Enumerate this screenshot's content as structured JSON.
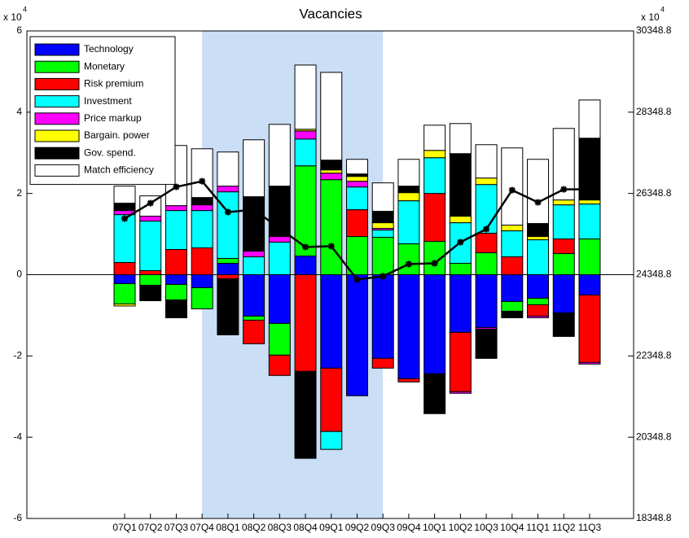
{
  "chart_data": {
    "type": "bar",
    "stacked": true,
    "title": "Vacancies",
    "y_multiplier": {
      "base": "x 10",
      "exponent": "4"
    },
    "y2_multiplier": {
      "base": "x 10",
      "exponent": "4"
    },
    "categories": [
      "07Q1",
      "07Q2",
      "07Q3",
      "07Q4",
      "08Q1",
      "08Q2",
      "08Q3",
      "08Q4",
      "09Q1",
      "09Q2",
      "09Q3",
      "09Q4",
      "10Q1",
      "10Q2",
      "10Q3",
      "10Q4",
      "11Q1",
      "11Q2",
      "11Q3"
    ],
    "series": [
      {
        "name": "Technology",
        "color": "#0000ff",
        "values": [
          -0.22,
          0,
          -0.24,
          -0.32,
          0.28,
          -1.02,
          -1.2,
          0.46,
          -2.3,
          -2.98,
          -2.06,
          -2.56,
          -2.44,
          -1.42,
          -1.3,
          -0.66,
          -0.58,
          -0.94,
          -0.5
        ]
      },
      {
        "name": "Monetary",
        "color": "#00ff00",
        "values": [
          -0.5,
          -0.26,
          -0.38,
          -0.52,
          0.12,
          -0.1,
          -0.78,
          2.22,
          2.34,
          0.94,
          0.92,
          0.76,
          0.82,
          0.28,
          0.54,
          -0.24,
          -0.16,
          0.52,
          0.88
        ]
      },
      {
        "name": "Risk premium",
        "color": "#ff0000",
        "values": [
          0.3,
          0.1,
          0.62,
          0.66,
          -0.1,
          -0.58,
          -0.5,
          -2.38,
          -1.56,
          0.66,
          -0.24,
          -0.08,
          1.18,
          -1.46,
          0.48,
          0.44,
          -0.28,
          0.36,
          -1.66
        ]
      },
      {
        "name": "Investment",
        "color": "#00ffff",
        "values": [
          1.18,
          1.22,
          0.96,
          0.92,
          1.64,
          0.44,
          0.8,
          0.66,
          -0.44,
          0.56,
          0.18,
          1.06,
          0.88,
          1.0,
          1.2,
          0.64,
          0.86,
          0.84,
          0.86
        ]
      },
      {
        "name": "Price markup",
        "color": "#ff00ff",
        "values": [
          0.1,
          0.12,
          0.12,
          0.14,
          0.14,
          0.14,
          0.14,
          0.2,
          0.16,
          0.14,
          0.04,
          0,
          0,
          -0.04,
          -0.04,
          0,
          -0.04,
          0,
          -0.04
        ]
      },
      {
        "name": "Bargain. power",
        "color": "#ffff00",
        "values": [
          -0.05,
          0,
          0,
          0,
          0,
          0,
          0,
          0.04,
          0.08,
          0.12,
          0.14,
          0.2,
          0.18,
          0.16,
          0.16,
          0.14,
          0.08,
          0.12,
          0.1
        ]
      },
      {
        "name": "Gov. spend.",
        "color": "#000000",
        "values": [
          0.18,
          -0.38,
          -0.44,
          0.18,
          -1.38,
          1.34,
          1.24,
          -2.14,
          0.24,
          0.06,
          0.28,
          0.16,
          -0.98,
          1.54,
          -0.72,
          -0.16,
          0.32,
          -0.58,
          1.52
        ]
      },
      {
        "name": "Match efficiency",
        "color": "#ffffff",
        "values": [
          0.42,
          0.5,
          1.48,
          1.2,
          0.84,
          1.4,
          1.52,
          1.58,
          2.16,
          0.36,
          0.7,
          0.66,
          0.62,
          0.74,
          0.82,
          1.9,
          1.58,
          1.76,
          0.94
        ]
      }
    ],
    "line": {
      "axis": "y2",
      "color": "#000000",
      "marker": "*",
      "values": [
        25730,
        26110,
        26510,
        26650,
        25890,
        25950,
        25490,
        25030,
        25050,
        24230,
        24310,
        24610,
        24630,
        25150,
        25470,
        26430,
        26130,
        26450,
        26450
      ]
    },
    "shaded_range": [
      "07Q4",
      "09Q3"
    ],
    "shade_color": "#cadef5",
    "ylim": [
      -6,
      6
    ],
    "yticks": [
      -6,
      -4,
      -2,
      0,
      2,
      4,
      6
    ],
    "y2lim": [
      18348.8,
      30348.8
    ],
    "y2ticks": [
      18348.8,
      20348.8,
      22348.8,
      24348.8,
      26348.8,
      28348.8,
      30348.8
    ],
    "legend": "upper left"
  }
}
